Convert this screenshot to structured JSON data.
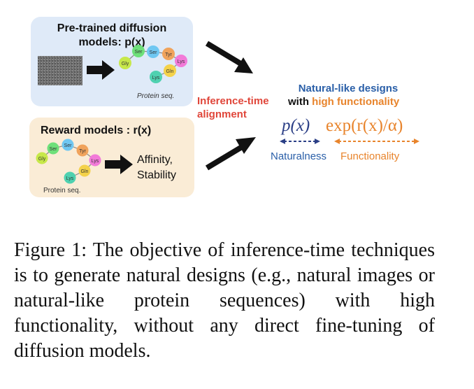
{
  "figure": {
    "pretrained_box": {
      "title_line1": "Pre-trained diffusion",
      "title_line2": "models: p(x)",
      "protein_label": "Protein seq.",
      "residues": [
        "Gly",
        "Ser",
        "Ser",
        "Tyr",
        "Lys",
        "Gln",
        "Lys"
      ]
    },
    "reward_box": {
      "title": "Reward models : r(x)",
      "output_line1": "Affinity,",
      "output_line2": "Stability",
      "protein_label": "Protein seq.",
      "residues": [
        "Gly",
        "Ser",
        "Ser",
        "Tyr",
        "Lys",
        "Gln",
        "Lys"
      ]
    },
    "alignment_label_line1": "Inference-time",
    "alignment_label_line2": "alignment",
    "result": {
      "title_line1": "Natural-like designs",
      "title_with": "with ",
      "title_high": "high functionality",
      "formula_p": "p(x)",
      "formula_exp": "exp(r(x)/α)",
      "naturalness": "Naturalness",
      "functionality": "Functionality"
    },
    "colors": {
      "pretrained_bg": "#dfeaf8",
      "reward_bg": "#faecd6",
      "alignment_red": "#e0463a",
      "result_blue": "#2a5fa8",
      "result_orange": "#e8842c",
      "formula_navy": "#2b3f86"
    }
  },
  "caption": "Figure 1: The objective of inference-time techniques is to generate natural designs (e.g., natural images or natural-like protein sequences) with high functionality, without any direct fine-tuning of diffusion models."
}
